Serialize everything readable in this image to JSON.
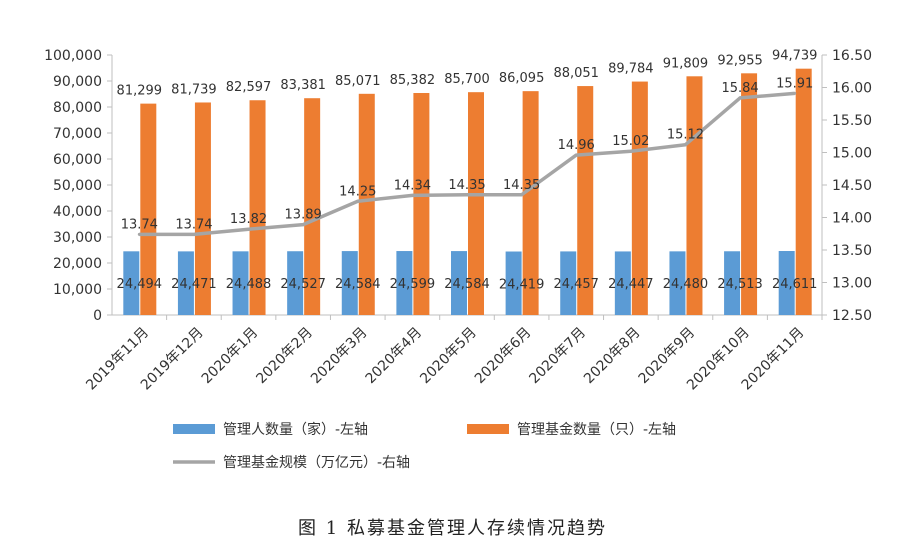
{
  "chart_data": {
    "type": "bar",
    "title": "",
    "caption": "图 1  私募基金管理人存续情况趋势",
    "categories": [
      "2019年11月",
      "2019年12月",
      "2020年1月",
      "2020年2月",
      "2020年3月",
      "2020年4月",
      "2020年5月",
      "2020年6月",
      "2020年7月",
      "2020年8月",
      "2020年9月",
      "2020年10月",
      "2020年11月"
    ],
    "series": [
      {
        "name": "管理人数量（家）-左轴",
        "type": "bar",
        "axis": "left",
        "color": "#5b9bd5",
        "values": [
          24494,
          24471,
          24488,
          24527,
          24584,
          24599,
          24584,
          24419,
          24457,
          24447,
          24480,
          24513,
          24611
        ],
        "labels": [
          "24,494",
          "24,471",
          "24,488",
          "24,527",
          "24,584",
          "24,599",
          "24,584",
          "24,419",
          "24,457",
          "24,447",
          "24,480",
          "24,513",
          "24,611"
        ]
      },
      {
        "name": "管理基金数量（只）-左轴",
        "type": "bar",
        "axis": "left",
        "color": "#ed7d31",
        "values": [
          81299,
          81739,
          82597,
          83381,
          85071,
          85382,
          85700,
          86095,
          88051,
          89784,
          91809,
          92955,
          94739
        ],
        "labels": [
          "81,299",
          "81,739",
          "82,597",
          "83,381",
          "85,071",
          "85,382",
          "85,700",
          "86,095",
          "88,051",
          "89,784",
          "91,809",
          "92,955",
          "94,739"
        ]
      },
      {
        "name": "管理基金规模（万亿元）-右轴",
        "type": "line",
        "axis": "right",
        "color": "#a5a5a5",
        "values": [
          13.74,
          13.74,
          13.82,
          13.89,
          14.25,
          14.34,
          14.35,
          14.35,
          14.96,
          15.02,
          15.12,
          15.84,
          15.91
        ],
        "labels": [
          "13.74",
          "13.74",
          "13.82",
          "13.89",
          "14.25",
          "14.34",
          "14.35",
          "14.35",
          "14.96",
          "15.02",
          "15.12",
          "15.84",
          "15.91"
        ]
      }
    ],
    "y_left": {
      "lim": [
        0,
        100000
      ],
      "ticks": [
        0,
        10000,
        20000,
        30000,
        40000,
        50000,
        60000,
        70000,
        80000,
        90000,
        100000
      ],
      "tick_labels": [
        "0",
        "10,000",
        "20,000",
        "30,000",
        "40,000",
        "50,000",
        "60,000",
        "70,000",
        "80,000",
        "90,000",
        "100,000"
      ]
    },
    "y_right": {
      "lim": [
        12.5,
        16.5
      ],
      "ticks": [
        12.5,
        13,
        13.5,
        14,
        14.5,
        15,
        15.5,
        16,
        16.5
      ],
      "tick_labels": [
        "12.50",
        "13.00",
        "13.50",
        "14.00",
        "14.50",
        "15.00",
        "15.50",
        "16.00",
        "16.50"
      ]
    },
    "grid": false,
    "legend_position": "bottom"
  }
}
